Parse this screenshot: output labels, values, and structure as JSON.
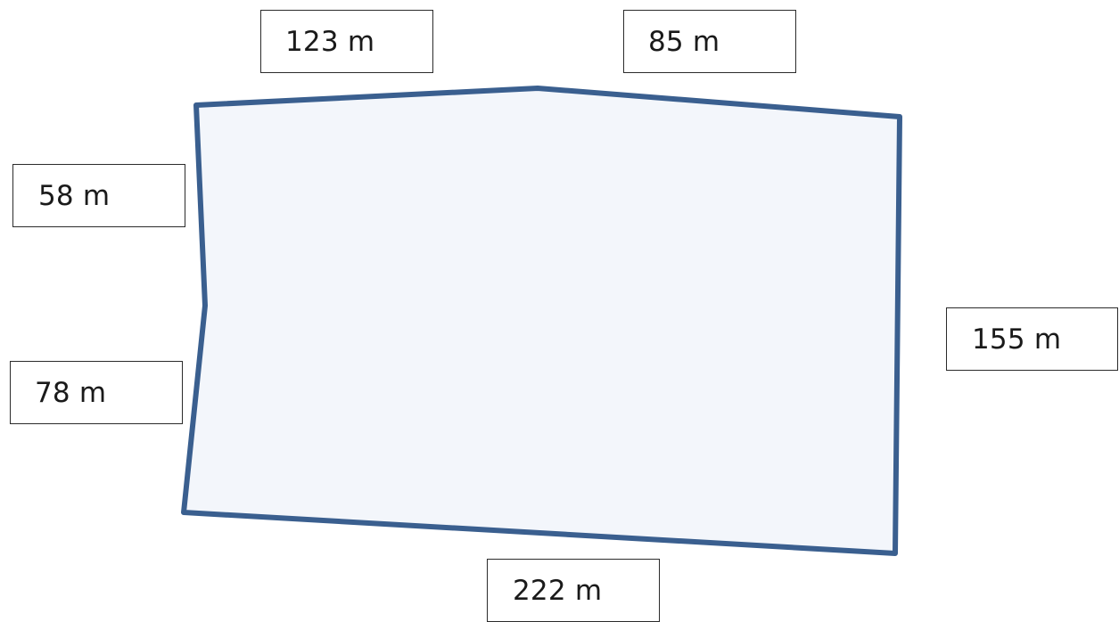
{
  "diagram": {
    "shape_fill": "#f3f6fb",
    "shape_stroke": "#3a5f8f",
    "side_lengths": {
      "top_left": "123 m",
      "top_right": "85 m",
      "left_upper": "58 m",
      "left_lower": "78 m",
      "right": "155 m",
      "bottom": "222 m"
    }
  }
}
